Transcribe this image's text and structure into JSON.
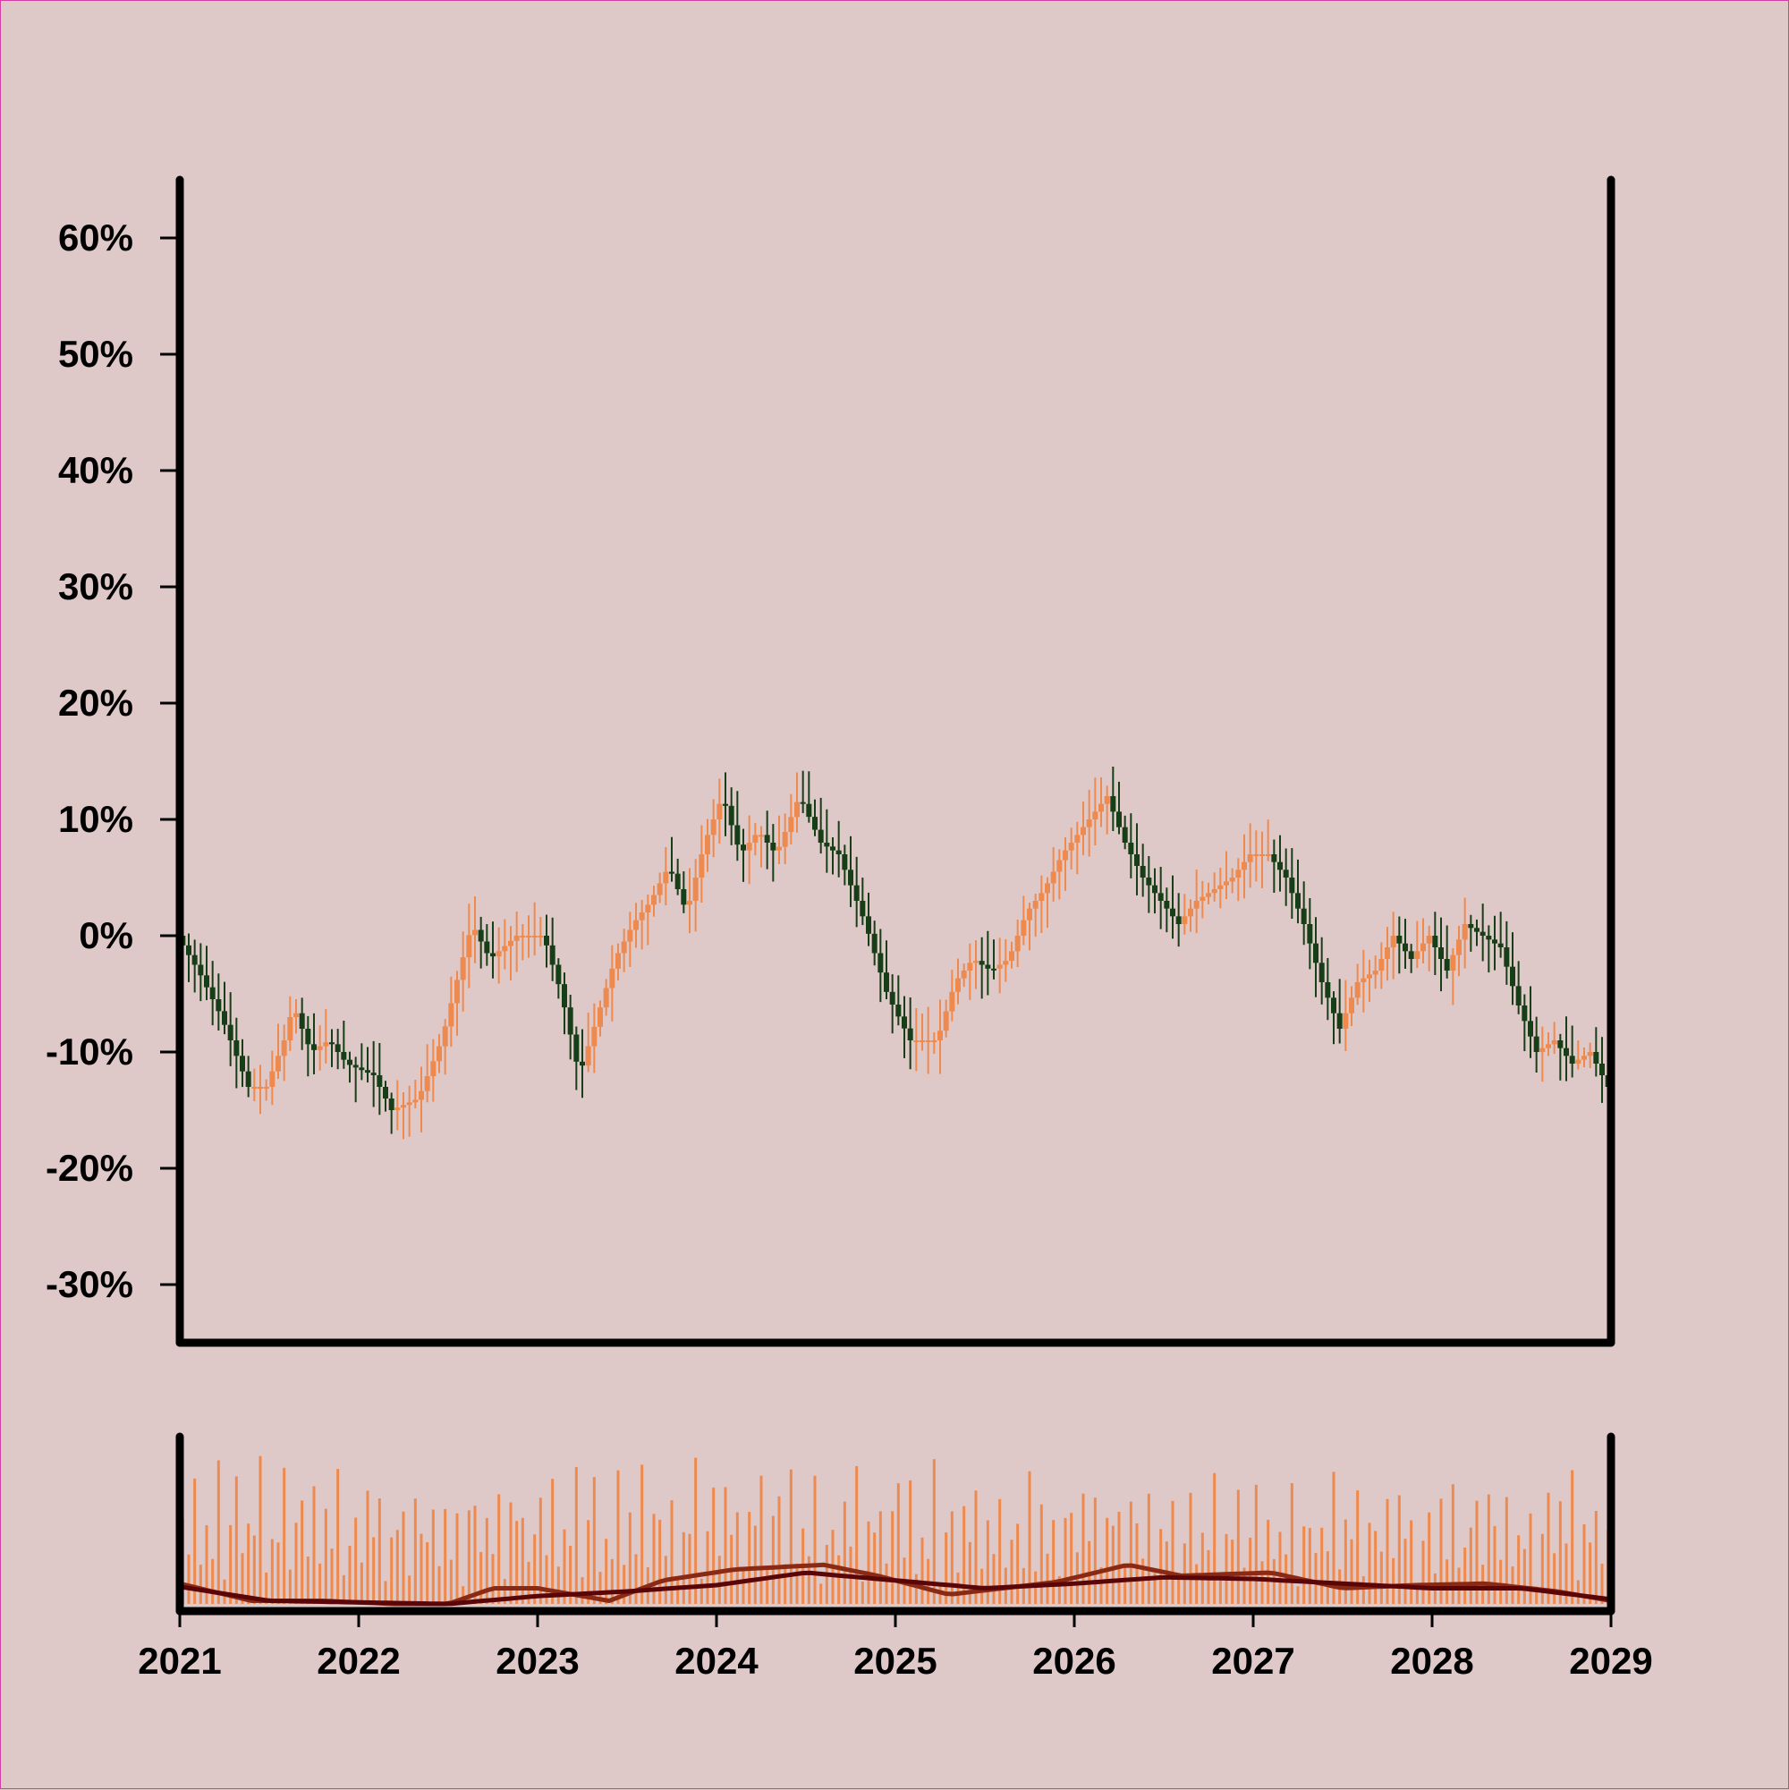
{
  "chart_data": {
    "type": "candlestick",
    "y_format": "percent",
    "ylim": [
      -35,
      65
    ],
    "yticks": [
      -30,
      -20,
      -10,
      0,
      10,
      20,
      30,
      40,
      50,
      60
    ],
    "ytick_labels": [
      "-30%",
      "-20%",
      "-10%",
      "0%",
      "10%",
      "20%",
      "30%",
      "40%",
      "50%",
      "60%"
    ],
    "xlim": [
      2021,
      2029
    ],
    "xticks": [
      2021,
      2022,
      2023,
      2024,
      2025,
      2026,
      2027,
      2028,
      2029
    ],
    "xtick_labels": [
      "2021",
      "2022",
      "2023",
      "2024",
      "2025",
      "2026",
      "2027",
      "2028",
      "2029"
    ],
    "grid": false,
    "colors": {
      "up": "#ee8a4e",
      "down": "#173f17",
      "volume": "#ee8a4e",
      "ma_fast": "#8b2a14",
      "ma_slow": "#5a0508",
      "axis": "#000000",
      "background": "#dfc8c8"
    },
    "close_path": [
      [
        2021.0,
        0
      ],
      [
        2021.12,
        -3
      ],
      [
        2021.25,
        -7
      ],
      [
        2021.4,
        -13
      ],
      [
        2021.5,
        -13
      ],
      [
        2021.6,
        -9
      ],
      [
        2021.65,
        -6
      ],
      [
        2021.75,
        -10
      ],
      [
        2021.85,
        -9
      ],
      [
        2021.95,
        -11
      ],
      [
        2022.1,
        -12
      ],
      [
        2022.2,
        -15
      ],
      [
        2022.35,
        -14
      ],
      [
        2022.48,
        -9
      ],
      [
        2022.58,
        -3
      ],
      [
        2022.65,
        1
      ],
      [
        2022.75,
        -2
      ],
      [
        2022.9,
        0
      ],
      [
        2023.05,
        0
      ],
      [
        2023.15,
        -5
      ],
      [
        2023.25,
        -12
      ],
      [
        2023.35,
        -7
      ],
      [
        2023.45,
        -2
      ],
      [
        2023.55,
        1
      ],
      [
        2023.65,
        3
      ],
      [
        2023.75,
        6
      ],
      [
        2023.85,
        2
      ],
      [
        2023.95,
        8
      ],
      [
        2024.05,
        12
      ],
      [
        2024.15,
        7
      ],
      [
        2024.25,
        9
      ],
      [
        2024.35,
        7
      ],
      [
        2024.48,
        12
      ],
      [
        2024.6,
        8
      ],
      [
        2024.7,
        7
      ],
      [
        2024.85,
        1
      ],
      [
        2024.97,
        -5
      ],
      [
        2025.1,
        -9
      ],
      [
        2025.25,
        -9
      ],
      [
        2025.35,
        -4
      ],
      [
        2025.45,
        -2
      ],
      [
        2025.55,
        -3
      ],
      [
        2025.65,
        -2
      ],
      [
        2025.75,
        2
      ],
      [
        2025.85,
        4
      ],
      [
        2025.95,
        7
      ],
      [
        2026.1,
        10
      ],
      [
        2026.2,
        12
      ],
      [
        2026.3,
        8
      ],
      [
        2026.4,
        5
      ],
      [
        2026.5,
        3
      ],
      [
        2026.6,
        1
      ],
      [
        2026.7,
        3
      ],
      [
        2026.8,
        4
      ],
      [
        2026.9,
        5
      ],
      [
        2027.0,
        7
      ],
      [
        2027.1,
        7
      ],
      [
        2027.2,
        5
      ],
      [
        2027.3,
        1
      ],
      [
        2027.4,
        -4
      ],
      [
        2027.5,
        -8
      ],
      [
        2027.6,
        -4
      ],
      [
        2027.7,
        -3
      ],
      [
        2027.8,
        0
      ],
      [
        2027.9,
        -2
      ],
      [
        2028.0,
        0
      ],
      [
        2028.1,
        -3
      ],
      [
        2028.2,
        1
      ],
      [
        2028.3,
        0
      ],
      [
        2028.4,
        -1
      ],
      [
        2028.5,
        -6
      ],
      [
        2028.6,
        -10
      ],
      [
        2028.7,
        -9
      ],
      [
        2028.8,
        -11
      ],
      [
        2028.9,
        -10
      ],
      [
        2029.0,
        -13
      ]
    ],
    "volume_pattern": [
      0.8,
      0.4,
      0.9,
      0.3,
      0.7,
      0.5,
      0.95,
      0.2,
      0.6,
      0.85,
      0.35,
      0.75,
      0.45,
      1.0,
      0.25,
      0.65,
      0.55,
      0.9,
      0.3,
      0.7
    ],
    "ma_fast_path": [
      [
        2021.0,
        0.13
      ],
      [
        2021.4,
        0.02
      ],
      [
        2021.8,
        0.02
      ],
      [
        2022.2,
        0.0
      ],
      [
        2022.5,
        0.0
      ],
      [
        2022.75,
        0.1
      ],
      [
        2023.0,
        0.1
      ],
      [
        2023.4,
        0.02
      ],
      [
        2023.7,
        0.15
      ],
      [
        2024.1,
        0.22
      ],
      [
        2024.6,
        0.25
      ],
      [
        2024.9,
        0.18
      ],
      [
        2025.3,
        0.06
      ],
      [
        2025.6,
        0.1
      ],
      [
        2025.9,
        0.14
      ],
      [
        2026.3,
        0.25
      ],
      [
        2026.6,
        0.18
      ],
      [
        2027.1,
        0.2
      ],
      [
        2027.5,
        0.1
      ],
      [
        2027.9,
        0.12
      ],
      [
        2028.3,
        0.13
      ],
      [
        2028.7,
        0.08
      ],
      [
        2029.0,
        0.02
      ]
    ],
    "ma_slow_path": [
      [
        2021.0,
        0.11
      ],
      [
        2021.5,
        0.02
      ],
      [
        2022.0,
        0.01
      ],
      [
        2022.5,
        0.0
      ],
      [
        2023.0,
        0.05
      ],
      [
        2023.5,
        0.08
      ],
      [
        2024.0,
        0.12
      ],
      [
        2024.5,
        0.2
      ],
      [
        2025.0,
        0.15
      ],
      [
        2025.5,
        0.1
      ],
      [
        2026.0,
        0.13
      ],
      [
        2026.5,
        0.17
      ],
      [
        2027.0,
        0.16
      ],
      [
        2027.5,
        0.13
      ],
      [
        2028.0,
        0.1
      ],
      [
        2028.5,
        0.1
      ],
      [
        2029.0,
        0.03
      ]
    ]
  }
}
